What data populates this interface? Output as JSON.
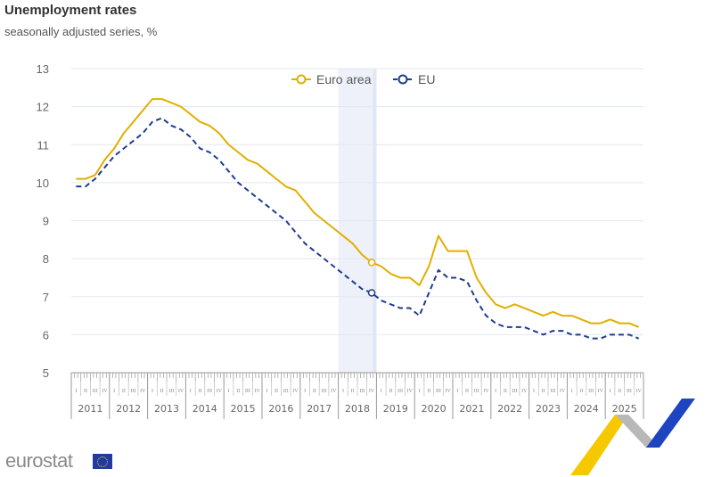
{
  "header": {
    "title": "Unemployment rates",
    "subtitle": "seasonally adjusted series, %"
  },
  "branding": {
    "logo_text": "eurostat"
  },
  "chart_data": {
    "type": "line",
    "title": "Unemployment rates",
    "subtitle": "seasonally adjusted series, %",
    "xlabel": "",
    "ylabel": "",
    "ylim": [
      5,
      13
    ],
    "yticks": [
      5,
      6,
      7,
      8,
      9,
      10,
      11,
      12,
      13
    ],
    "years": [
      "2011",
      "2012",
      "2013",
      "2014",
      "2015",
      "2016",
      "2017",
      "2018",
      "2019",
      "2020",
      "2021",
      "2022",
      "2023",
      "2024",
      "2025"
    ],
    "quarters": [
      "I",
      "II",
      "III",
      "IV"
    ],
    "frequency": "quarterly (approx.)",
    "highlight": {
      "year": "2018",
      "marker_quarter": "2018 IV"
    },
    "legend": {
      "position": "top-center"
    },
    "grid": true,
    "series": [
      {
        "name": "Euro area",
        "color": "#e0b000",
        "dash": false,
        "values": [
          10.1,
          10.1,
          10.2,
          10.6,
          10.9,
          11.3,
          11.6,
          11.9,
          12.2,
          12.2,
          12.1,
          12.0,
          11.8,
          11.6,
          11.5,
          11.3,
          11.0,
          10.8,
          10.6,
          10.5,
          10.3,
          10.1,
          9.9,
          9.8,
          9.5,
          9.2,
          9.0,
          8.8,
          8.6,
          8.4,
          8.1,
          7.9,
          7.8,
          7.6,
          7.5,
          7.5,
          7.3,
          7.8,
          8.6,
          8.2,
          8.2,
          8.2,
          7.5,
          7.1,
          6.8,
          6.7,
          6.8,
          6.7,
          6.6,
          6.5,
          6.6,
          6.5,
          6.5,
          6.4,
          6.3,
          6.3,
          6.4,
          6.3,
          6.3,
          6.2
        ]
      },
      {
        "name": "EU",
        "color": "#1f3d8f",
        "dash": true,
        "values": [
          9.9,
          9.9,
          10.1,
          10.4,
          10.7,
          10.9,
          11.1,
          11.3,
          11.6,
          11.7,
          11.5,
          11.4,
          11.2,
          10.9,
          10.8,
          10.6,
          10.3,
          10.0,
          9.8,
          9.6,
          9.4,
          9.2,
          9.0,
          8.7,
          8.4,
          8.2,
          8.0,
          7.8,
          7.6,
          7.4,
          7.2,
          7.1,
          6.9,
          6.8,
          6.7,
          6.7,
          6.5,
          7.1,
          7.7,
          7.5,
          7.5,
          7.4,
          6.9,
          6.5,
          6.3,
          6.2,
          6.2,
          6.2,
          6.1,
          6.0,
          6.1,
          6.1,
          6.0,
          6.0,
          5.9,
          5.9,
          6.0,
          6.0,
          6.0,
          5.9
        ]
      }
    ]
  }
}
